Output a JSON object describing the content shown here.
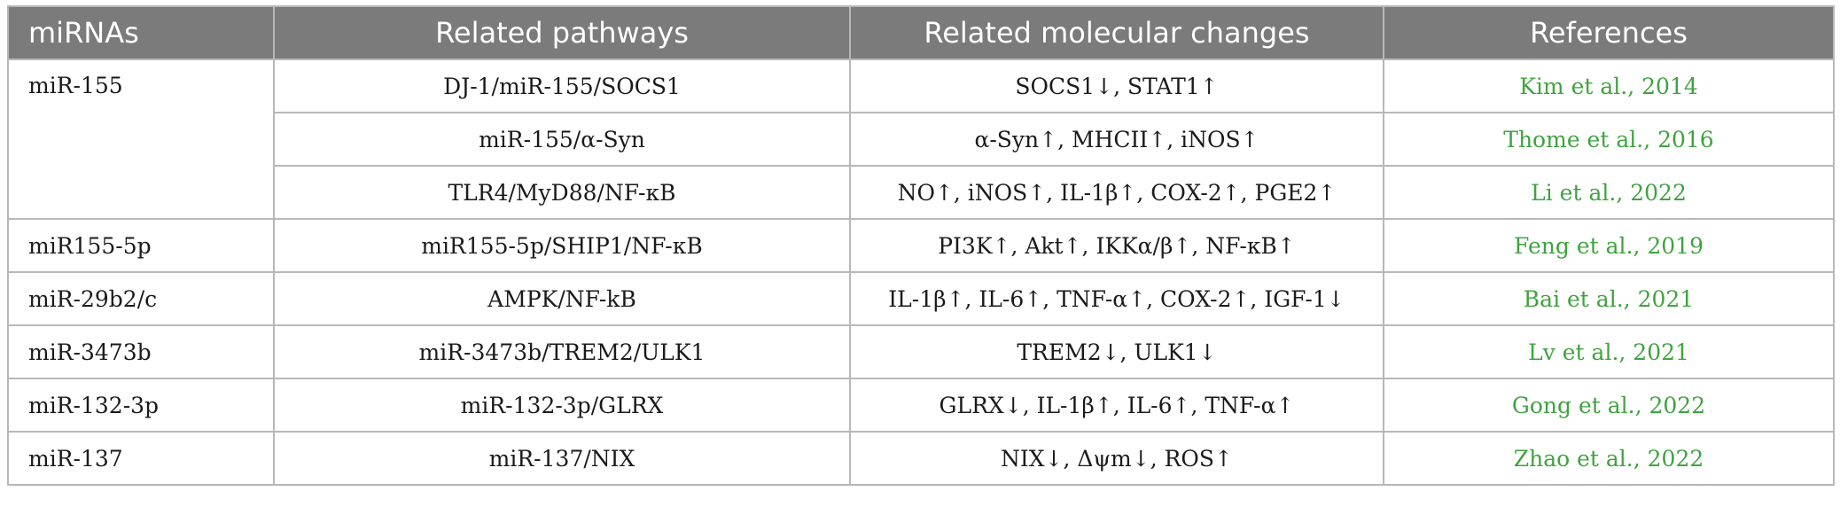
{
  "colors": {
    "header_bg": "#7b7b7b",
    "header_text": "#ffffff",
    "border": "#b8b8b8",
    "reference_link": "#3fa33f"
  },
  "headers": [
    "miRNAs",
    "Related pathways",
    "Related molecular changes",
    "References"
  ],
  "groups": [
    {
      "mirna": "miR-155",
      "rows": [
        {
          "pathway": "DJ-1/miR-155/SOCS1",
          "changes": "SOCS1↓, STAT1↑",
          "ref_author": "Kim et al.,",
          "ref_year": "2014"
        },
        {
          "pathway": "miR-155/α-Syn",
          "changes": "α-Syn↑, MHCII↑, iNOS↑",
          "ref_author": "Thome et al.,",
          "ref_year": "2016"
        },
        {
          "pathway": "TLR4/MyD88/NF-κB",
          "changes": "NO↑, iNOS↑, IL-1β↑, COX-2↑, PGE2↑",
          "ref_author": "Li et al.,",
          "ref_year": "2022"
        }
      ]
    },
    {
      "mirna": "miR155-5p",
      "rows": [
        {
          "pathway": "miR155-5p/SHIP1/NF-κB",
          "changes": "PI3K↑, Akt↑, IKKα/β↑, NF-κB↑",
          "ref_author": "Feng et al.,",
          "ref_year": "2019"
        }
      ]
    },
    {
      "mirna": "miR-29b2/c",
      "rows": [
        {
          "pathway": "AMPK/NF-kB",
          "changes": "IL-1β↑, IL-6↑, TNF-α↑, COX-2↑, IGF-1↓",
          "ref_author": "Bai et al.,",
          "ref_year": "2021"
        }
      ]
    },
    {
      "mirna": "miR-3473b",
      "rows": [
        {
          "pathway": "miR-3473b/TREM2/ULK1",
          "changes": "TREM2↓, ULK1↓",
          "ref_author": "Lv et al.,",
          "ref_year": "2021"
        }
      ]
    },
    {
      "mirna": "miR-132-3p",
      "rows": [
        {
          "pathway": "miR-132-3p/GLRX",
          "changes": "GLRX↓, IL-1β↑, IL-6↑, TNF-α↑",
          "ref_author": "Gong et al.,",
          "ref_year": "2022"
        }
      ]
    },
    {
      "mirna": "miR-137",
      "rows": [
        {
          "pathway": "miR-137/NIX",
          "changes": "NIX↓, Δψm↓, ROS↑",
          "ref_author": "Zhao et al.,",
          "ref_year": "2022"
        }
      ]
    }
  ]
}
